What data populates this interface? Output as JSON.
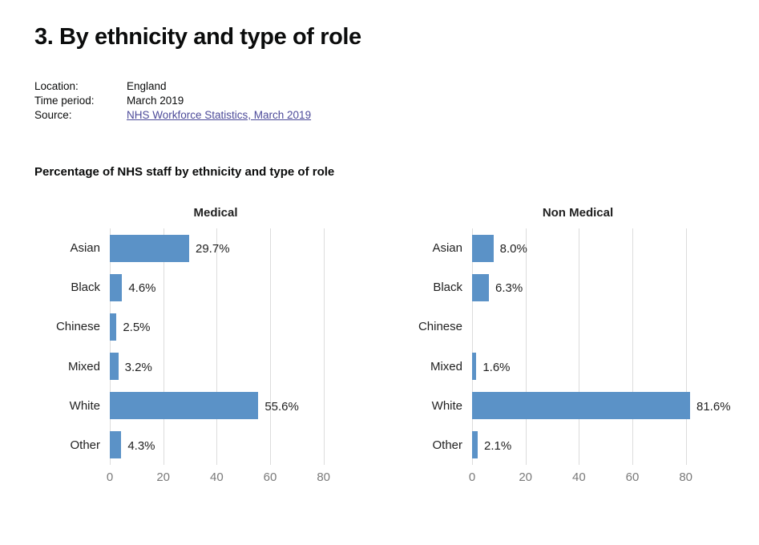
{
  "page": {
    "title": "3. By ethnicity and type of role",
    "meta": [
      {
        "label": "Location:",
        "value": "England"
      },
      {
        "label": "Time period:",
        "value": "March 2019"
      },
      {
        "label": "Source:",
        "value": "NHS Workforce Statistics, March 2019"
      }
    ],
    "chart_heading": "Percentage of NHS staff by ethnicity and type of role"
  },
  "colors": {
    "bar": "#5b92c7",
    "gridline": "#dcdcdc",
    "link": "#4c4a99",
    "tick_label": "#7a7a7a",
    "text": "#0b0c0c"
  },
  "chart_data": [
    {
      "type": "bar",
      "orientation": "horizontal",
      "title": "Medical",
      "categories": [
        "Asian",
        "Black",
        "Chinese",
        "Mixed",
        "White",
        "Other"
      ],
      "values": [
        29.7,
        4.6,
        2.5,
        3.2,
        55.6,
        4.3
      ],
      "value_labels": [
        "29.7%",
        "4.6%",
        "2.5%",
        "3.2%",
        "55.6%",
        "4.3%"
      ],
      "xlim": [
        0,
        90
      ],
      "xticks": [
        0,
        20,
        40,
        60,
        80
      ],
      "grid": true,
      "legend": false
    },
    {
      "type": "bar",
      "orientation": "horizontal",
      "title": "Non Medical",
      "categories": [
        "Asian",
        "Black",
        "Chinese",
        "Mixed",
        "White",
        "Other"
      ],
      "values": [
        8.0,
        6.3,
        null,
        1.6,
        81.6,
        2.1
      ],
      "value_labels": [
        "8.0%",
        "6.3%",
        null,
        "1.6%",
        "81.6%",
        "2.1%"
      ],
      "xlim": [
        0,
        90
      ],
      "xticks": [
        0,
        20,
        40,
        60,
        80
      ],
      "grid": true,
      "legend": false
    }
  ]
}
